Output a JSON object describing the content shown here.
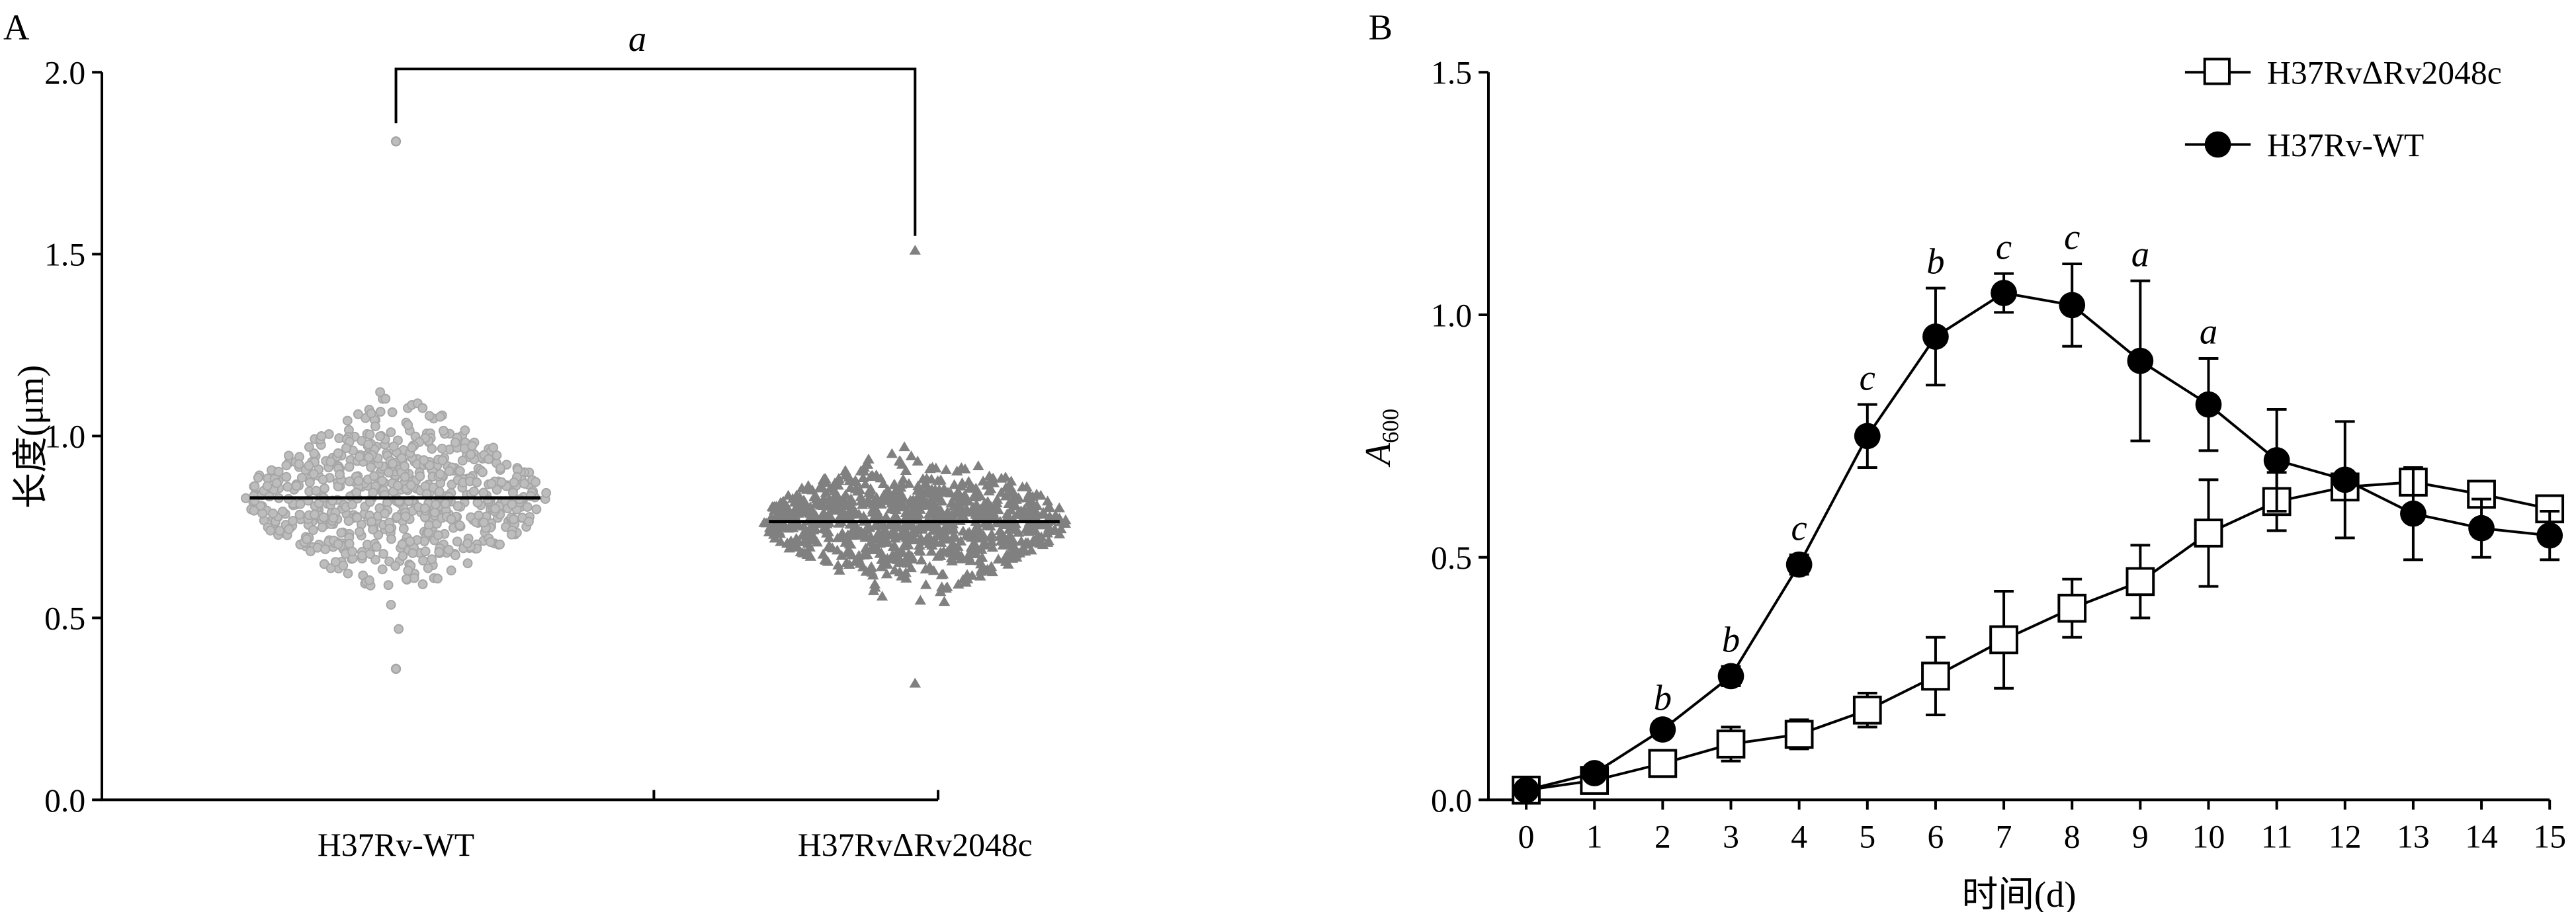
{
  "chart_data": [
    {
      "panel": "A",
      "type": "scatter",
      "subtype": "beeswarm",
      "title": "",
      "ylabel": "长度(μm)",
      "xlabel": "",
      "ylim": [
        0,
        2.0
      ],
      "yticks": [
        "0.0",
        "0.5",
        "1.0",
        "1.5",
        "2.0"
      ],
      "categories": [
        "H37Rv-WT",
        "H37RvΔRv2048c"
      ],
      "series": [
        {
          "name": "H37Rv-WT",
          "marker": "circle",
          "color": "#a6a6a6",
          "mean": 0.83,
          "min": 0.36,
          "max": 1.81,
          "n_approx": 700
        },
        {
          "name": "H37RvΔRv2048c",
          "marker": "triangle",
          "color": "#808080",
          "mean": 0.765,
          "min": 0.32,
          "max": 1.51,
          "n_approx": 900
        }
      ],
      "significance": {
        "label": "a",
        "between": [
          "H37Rv-WT",
          "H37RvΔRv2048c"
        ]
      }
    },
    {
      "panel": "B",
      "type": "line",
      "title": "",
      "xlabel": "时间(d)",
      "ylabel": "A600",
      "ylabel_main": "A",
      "ylabel_sub": "600",
      "xlim": [
        0,
        15
      ],
      "ylim": [
        0,
        1.5
      ],
      "x": [
        0,
        1,
        2,
        3,
        4,
        5,
        6,
        7,
        8,
        9,
        10,
        11,
        12,
        13,
        14,
        15
      ],
      "xticks": [
        "0",
        "1",
        "2",
        "3",
        "4",
        "5",
        "6",
        "7",
        "8",
        "9",
        "10",
        "11",
        "12",
        "13",
        "14",
        "15"
      ],
      "yticks": [
        "0.0",
        "0.5",
        "1.0",
        "1.5"
      ],
      "legend_position": "top-right",
      "series": [
        {
          "name": "H37RvΔRv2048c",
          "marker": "open-square",
          "values": [
            0.02,
            0.04,
            0.075,
            0.115,
            0.135,
            0.185,
            0.255,
            0.33,
            0.395,
            0.45,
            0.55,
            0.615,
            0.645,
            0.655,
            0.63,
            0.6
          ],
          "errors": [
            0.01,
            0.01,
            0.015,
            0.035,
            0.03,
            0.035,
            0.08,
            0.1,
            0.06,
            0.075,
            0.11,
            0.06,
            0.02,
            0.02,
            0.015,
            0.015
          ]
        },
        {
          "name": "H37Rv-WT",
          "marker": "filled-circle",
          "values": [
            0.02,
            0.055,
            0.145,
            0.255,
            0.485,
            0.75,
            0.955,
            1.045,
            1.02,
            0.905,
            0.815,
            0.7,
            0.66,
            0.59,
            0.56,
            0.545
          ],
          "errors": [
            0.01,
            0.01,
            0.01,
            0.02,
            0.02,
            0.065,
            0.1,
            0.04,
            0.085,
            0.165,
            0.095,
            0.105,
            0.12,
            0.095,
            0.06,
            0.05
          ]
        }
      ],
      "annotations": [
        {
          "x": 2,
          "label": "b"
        },
        {
          "x": 3,
          "label": "b"
        },
        {
          "x": 4,
          "label": "c"
        },
        {
          "x": 5,
          "label": "c"
        },
        {
          "x": 6,
          "label": "b"
        },
        {
          "x": 7,
          "label": "c"
        },
        {
          "x": 8,
          "label": "c"
        },
        {
          "x": 9,
          "label": "a"
        },
        {
          "x": 10,
          "label": "a"
        }
      ]
    }
  ],
  "panel_labels": [
    "A",
    "B"
  ]
}
